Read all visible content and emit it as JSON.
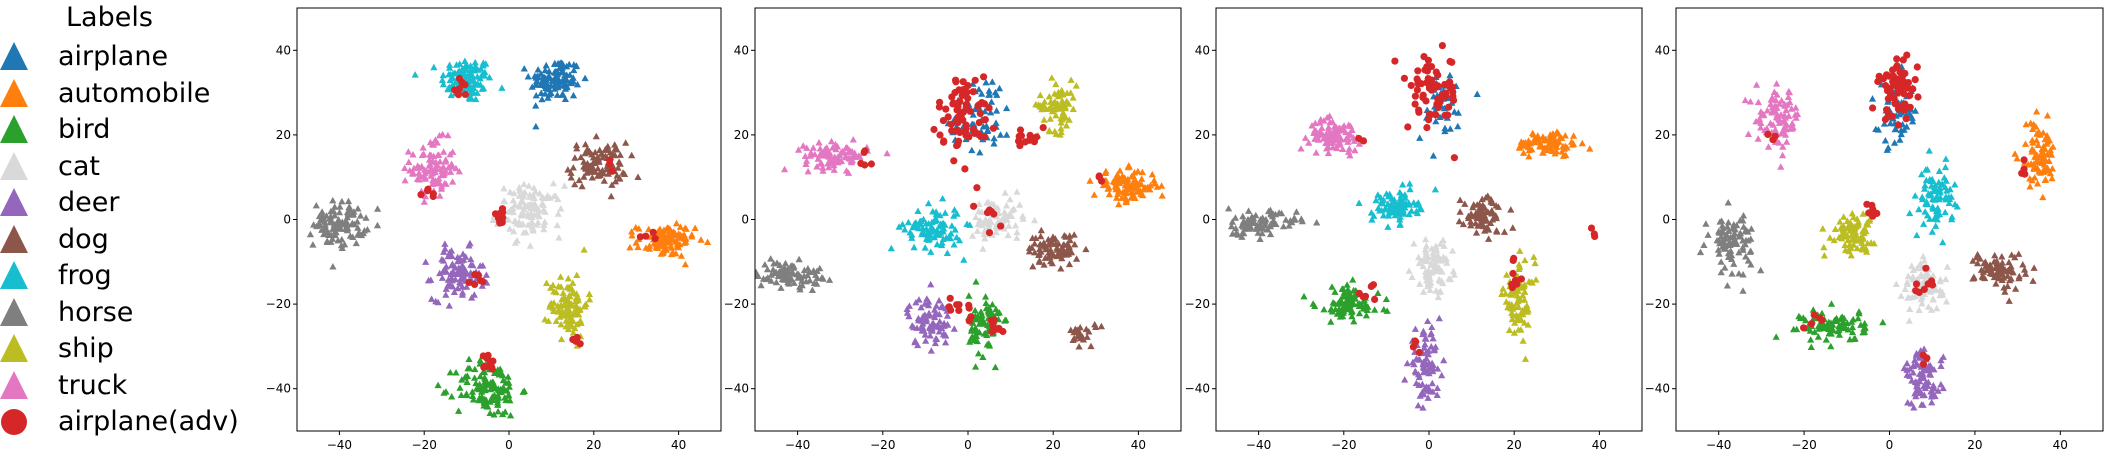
{
  "legend": {
    "title": "Labels",
    "entries": [
      {
        "label": "airplane",
        "color": "#1f77b4",
        "marker": "triangle"
      },
      {
        "label": "automobile",
        "color": "#ff7f0e",
        "marker": "triangle"
      },
      {
        "label": "bird",
        "color": "#2ca02c",
        "marker": "triangle"
      },
      {
        "label": "cat",
        "color": "#d9d9d9",
        "marker": "triangle"
      },
      {
        "label": "deer",
        "color": "#9467bd",
        "marker": "triangle"
      },
      {
        "label": "dog",
        "color": "#8c564b",
        "marker": "triangle"
      },
      {
        "label": "frog",
        "color": "#17becf",
        "marker": "triangle"
      },
      {
        "label": "horse",
        "color": "#7f7f7f",
        "marker": "triangle"
      },
      {
        "label": "ship",
        "color": "#bcbd22",
        "marker": "triangle"
      },
      {
        "label": "truck",
        "color": "#e377c2",
        "marker": "triangle"
      },
      {
        "label": "airplane(adv)",
        "color": "#d62728",
        "marker": "circle"
      }
    ]
  },
  "chart_data": [
    {
      "type": "scatter",
      "xlim": [
        -50,
        50
      ],
      "ylim": [
        -50,
        50
      ],
      "xticks": [
        -40,
        -20,
        0,
        20,
        40
      ],
      "yticks": [
        -40,
        -20,
        0,
        20,
        40
      ],
      "clusters": [
        {
          "label": "frog",
          "center": [
            -10,
            33
          ],
          "spread": [
            4,
            3.5
          ],
          "count": 110
        },
        {
          "label": "airplane",
          "center": [
            11,
            33
          ],
          "spread": [
            4,
            3.5
          ],
          "count": 110
        },
        {
          "label": "truck",
          "center": [
            -18,
            12
          ],
          "spread": [
            3.5,
            4.5
          ],
          "count": 100
        },
        {
          "label": "dog",
          "center": [
            21,
            13
          ],
          "spread": [
            4.5,
            3.5
          ],
          "count": 100
        },
        {
          "label": "cat",
          "center": [
            5,
            2
          ],
          "spread": [
            5,
            4
          ],
          "count": 110
        },
        {
          "label": "horse",
          "center": [
            -40,
            -1
          ],
          "spread": [
            4,
            3.5
          ],
          "count": 100
        },
        {
          "label": "automobile",
          "center": [
            37,
            -5
          ],
          "spread": [
            4.5,
            2.5
          ],
          "count": 100
        },
        {
          "label": "deer",
          "center": [
            -12,
            -13
          ],
          "spread": [
            4,
            4
          ],
          "count": 100
        },
        {
          "label": "ship",
          "center": [
            14,
            -20
          ],
          "spread": [
            3,
            5
          ],
          "count": 100
        },
        {
          "label": "bird",
          "center": [
            -5,
            -40
          ],
          "spread": [
            5,
            4.5
          ],
          "count": 120
        },
        {
          "label": "airplane(adv)",
          "center": [
            -11,
            31
          ],
          "spread": [
            1.5,
            1.5
          ],
          "count": 8
        },
        {
          "label": "airplane(adv)",
          "center": [
            -2,
            1
          ],
          "spread": [
            1.2,
            1.5
          ],
          "count": 12
        },
        {
          "label": "airplane(adv)",
          "center": [
            -18,
            6
          ],
          "spread": [
            1.5,
            1
          ],
          "count": 5
        },
        {
          "label": "airplane(adv)",
          "center": [
            -8,
            -14
          ],
          "spread": [
            1.5,
            1
          ],
          "count": 6
        },
        {
          "label": "airplane(adv)",
          "center": [
            -5,
            -34
          ],
          "spread": [
            1.2,
            1.5
          ],
          "count": 14
        },
        {
          "label": "airplane(adv)",
          "center": [
            16,
            -29
          ],
          "spread": [
            0.8,
            1.2
          ],
          "count": 5
        },
        {
          "label": "airplane(adv)",
          "center": [
            34,
            -4
          ],
          "spread": [
            1.5,
            0.8
          ],
          "count": 4
        },
        {
          "label": "airplane(adv)",
          "center": [
            25,
            13
          ],
          "spread": [
            1.5,
            1
          ],
          "count": 3
        }
      ]
    },
    {
      "type": "scatter",
      "xlim": [
        -50,
        50
      ],
      "ylim": [
        -50,
        50
      ],
      "xticks": [
        -40,
        -20,
        0,
        20,
        40
      ],
      "yticks": [
        -40,
        -20,
        0,
        20,
        40
      ],
      "clusters": [
        {
          "label": "airplane",
          "center": [
            3,
            25
          ],
          "spread": [
            5,
            6
          ],
          "count": 60
        },
        {
          "label": "ship",
          "center": [
            21,
            27
          ],
          "spread": [
            3,
            4
          ],
          "count": 70
        },
        {
          "label": "truck",
          "center": [
            -31,
            15
          ],
          "spread": [
            5,
            2
          ],
          "count": 90
        },
        {
          "label": "automobile",
          "center": [
            37,
            8
          ],
          "spread": [
            5,
            2.5
          ],
          "count": 100
        },
        {
          "label": "frog",
          "center": [
            -8,
            -2
          ],
          "spread": [
            4.5,
            3.5
          ],
          "count": 90
        },
        {
          "label": "cat",
          "center": [
            7,
            0
          ],
          "spread": [
            4,
            3.5
          ],
          "count": 80
        },
        {
          "label": "dog",
          "center": [
            20,
            -7
          ],
          "spread": [
            4,
            2.5
          ],
          "count": 80
        },
        {
          "label": "horse",
          "center": [
            -42,
            -13
          ],
          "spread": [
            5,
            2
          ],
          "count": 90
        },
        {
          "label": "deer",
          "center": [
            -9,
            -24
          ],
          "spread": [
            3.5,
            4
          ],
          "count": 80
        },
        {
          "label": "bird",
          "center": [
            4,
            -25
          ],
          "spread": [
            2.5,
            5
          ],
          "count": 80
        },
        {
          "label": "dog",
          "center": [
            27,
            -27
          ],
          "spread": [
            2,
            2
          ],
          "count": 25
        },
        {
          "label": "airplane(adv)",
          "center": [
            -1,
            25
          ],
          "spread": [
            4,
            6
          ],
          "count": 70
        },
        {
          "label": "airplane(adv)",
          "center": [
            14,
            20
          ],
          "spread": [
            2,
            2
          ],
          "count": 12
        },
        {
          "label": "airplane(adv)",
          "center": [
            -24,
            15
          ],
          "spread": [
            1,
            1.5
          ],
          "count": 5
        },
        {
          "label": "airplane(adv)",
          "center": [
            5,
            2
          ],
          "spread": [
            3,
            4
          ],
          "count": 8
        },
        {
          "label": "airplane(adv)",
          "center": [
            -2,
            -21
          ],
          "spread": [
            4,
            2.5
          ],
          "count": 10
        },
        {
          "label": "airplane(adv)",
          "center": [
            6,
            -25
          ],
          "spread": [
            1.5,
            3
          ],
          "count": 8
        },
        {
          "label": "airplane(adv)",
          "center": [
            31,
            9
          ],
          "spread": [
            1,
            1
          ],
          "count": 3
        }
      ]
    },
    {
      "type": "scatter",
      "xlim": [
        -50,
        50
      ],
      "ylim": [
        -50,
        50
      ],
      "xticks": [
        -40,
        -20,
        0,
        20,
        40
      ],
      "yticks": [
        -40,
        -20,
        0,
        20,
        40
      ],
      "clusters": [
        {
          "label": "airplane",
          "center": [
            3,
            27
          ],
          "spread": [
            4,
            6
          ],
          "count": 40
        },
        {
          "label": "truck",
          "center": [
            -22,
            20
          ],
          "spread": [
            4,
            2.5
          ],
          "count": 90
        },
        {
          "label": "automobile",
          "center": [
            28,
            18
          ],
          "spread": [
            5,
            2
          ],
          "count": 90
        },
        {
          "label": "frog",
          "center": [
            -8,
            3
          ],
          "spread": [
            3.5,
            2.5
          ],
          "count": 90
        },
        {
          "label": "dog",
          "center": [
            13,
            1
          ],
          "spread": [
            3.5,
            3
          ],
          "count": 80
        },
        {
          "label": "horse",
          "center": [
            -40,
            -1
          ],
          "spread": [
            6,
            2
          ],
          "count": 90
        },
        {
          "label": "cat",
          "center": [
            1,
            -11
          ],
          "spread": [
            3,
            4
          ],
          "count": 80
        },
        {
          "label": "bird",
          "center": [
            -19,
            -20
          ],
          "spread": [
            5,
            3
          ],
          "count": 90
        },
        {
          "label": "ship",
          "center": [
            21,
            -19
          ],
          "spread": [
            2.5,
            6
          ],
          "count": 80
        },
        {
          "label": "deer",
          "center": [
            -1,
            -34
          ],
          "spread": [
            2.5,
            5
          ],
          "count": 80
        },
        {
          "label": "airplane(adv)",
          "center": [
            1,
            30
          ],
          "spread": [
            4,
            6
          ],
          "count": 70
        },
        {
          "label": "airplane(adv)",
          "center": [
            20,
            -14
          ],
          "spread": [
            1.5,
            3
          ],
          "count": 8
        },
        {
          "label": "airplane(adv)",
          "center": [
            -15,
            -18
          ],
          "spread": [
            2.5,
            2
          ],
          "count": 6
        },
        {
          "label": "airplane(adv)",
          "center": [
            -3,
            -31
          ],
          "spread": [
            1,
            1.5
          ],
          "count": 4
        },
        {
          "label": "airplane(adv)",
          "center": [
            39,
            -3
          ],
          "spread": [
            0.8,
            0.8
          ],
          "count": 3
        },
        {
          "label": "airplane(adv)",
          "center": [
            -16,
            18
          ],
          "spread": [
            0.8,
            0.8
          ],
          "count": 2
        }
      ]
    },
    {
      "type": "scatter",
      "xlim": [
        -50,
        50
      ],
      "ylim": [
        -50,
        50
      ],
      "xticks": [
        -40,
        -20,
        0,
        20,
        40
      ],
      "yticks": [
        -40,
        -20,
        0,
        20,
        40
      ],
      "clusters": [
        {
          "label": "airplane",
          "center": [
            2,
            25
          ],
          "spread": [
            3,
            5
          ],
          "count": 60
        },
        {
          "label": "truck",
          "center": [
            -26,
            24
          ],
          "spread": [
            3.5,
            4.5
          ],
          "count": 90
        },
        {
          "label": "automobile",
          "center": [
            35,
            15
          ],
          "spread": [
            3,
            5
          ],
          "count": 80
        },
        {
          "label": "frog",
          "center": [
            11,
            5
          ],
          "spread": [
            2.5,
            5
          ],
          "count": 80
        },
        {
          "label": "horse",
          "center": [
            -37,
            -5
          ],
          "spread": [
            3.5,
            4.5
          ],
          "count": 90
        },
        {
          "label": "ship",
          "center": [
            -9,
            -3
          ],
          "spread": [
            3.5,
            3
          ],
          "count": 80
        },
        {
          "label": "dog",
          "center": [
            26,
            -12
          ],
          "spread": [
            4,
            3
          ],
          "count": 80
        },
        {
          "label": "cat",
          "center": [
            8,
            -16
          ],
          "spread": [
            3.5,
            4
          ],
          "count": 80
        },
        {
          "label": "bird",
          "center": [
            -13,
            -25
          ],
          "spread": [
            5,
            2.5
          ],
          "count": 90
        },
        {
          "label": "deer",
          "center": [
            8,
            -38
          ],
          "spread": [
            3,
            4.5
          ],
          "count": 80
        },
        {
          "label": "airplane(adv)",
          "center": [
            2,
            31
          ],
          "spread": [
            3,
            5
          ],
          "count": 60
        },
        {
          "label": "airplane(adv)",
          "center": [
            -4,
            2
          ],
          "spread": [
            1.5,
            1.5
          ],
          "count": 6
        },
        {
          "label": "airplane(adv)",
          "center": [
            8,
            -15
          ],
          "spread": [
            2,
            3
          ],
          "count": 8
        },
        {
          "label": "airplane(adv)",
          "center": [
            32,
            11
          ],
          "spread": [
            1,
            1.5
          ],
          "count": 4
        },
        {
          "label": "airplane(adv)",
          "center": [
            -18,
            -25
          ],
          "spread": [
            2,
            1.5
          ],
          "count": 5
        },
        {
          "label": "airplane(adv)",
          "center": [
            -28,
            20
          ],
          "spread": [
            1,
            1
          ],
          "count": 3
        },
        {
          "label": "airplane(adv)",
          "center": [
            8,
            -33
          ],
          "spread": [
            1,
            1.5
          ],
          "count": 3
        }
      ]
    }
  ]
}
